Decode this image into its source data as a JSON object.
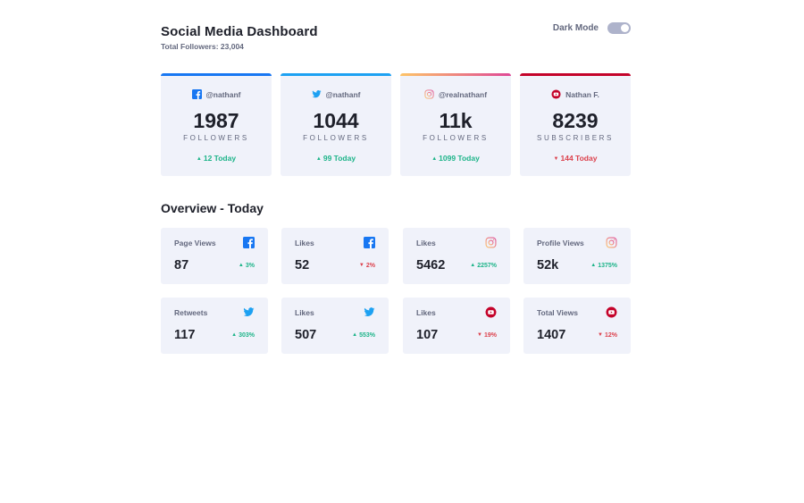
{
  "header": {
    "title": "Social Media Dashboard",
    "subtitle": "Total Followers: 23,004",
    "dark_mode_label": "Dark Mode"
  },
  "colors": {
    "facebook": "#1877f2",
    "twitter": "#1da1f2",
    "instagram_start": "#fdc468",
    "instagram_end": "#df4996",
    "youtube": "#c4032a",
    "up": "#1db489",
    "down": "#dc414c"
  },
  "cards": [
    {
      "platform": "facebook",
      "icon": "facebook-icon",
      "handle": "@nathanf",
      "count": "1987",
      "unit": "FOLLOWERS",
      "today": "12 Today",
      "trend": "up"
    },
    {
      "platform": "twitter",
      "icon": "twitter-icon",
      "handle": "@nathanf",
      "count": "1044",
      "unit": "FOLLOWERS",
      "today": "99 Today",
      "trend": "up"
    },
    {
      "platform": "instagram",
      "icon": "instagram-icon",
      "handle": "@realnathanf",
      "count": "11k",
      "unit": "FOLLOWERS",
      "today": "1099 Today",
      "trend": "up"
    },
    {
      "platform": "youtube",
      "icon": "youtube-icon",
      "handle": "Nathan F.",
      "count": "8239",
      "unit": "SUBSCRIBERS",
      "today": "144 Today",
      "trend": "down"
    }
  ],
  "overview": {
    "title": "Overview - Today",
    "items": [
      {
        "label": "Page Views",
        "icon": "facebook-icon",
        "value": "87",
        "percent": "3%",
        "trend": "up"
      },
      {
        "label": "Likes",
        "icon": "facebook-icon",
        "value": "52",
        "percent": "2%",
        "trend": "down"
      },
      {
        "label": "Likes",
        "icon": "instagram-icon",
        "value": "5462",
        "percent": "2257%",
        "trend": "up"
      },
      {
        "label": "Profile Views",
        "icon": "instagram-icon",
        "value": "52k",
        "percent": "1375%",
        "trend": "up"
      },
      {
        "label": "Retweets",
        "icon": "twitter-icon",
        "value": "117",
        "percent": "303%",
        "trend": "up"
      },
      {
        "label": "Likes",
        "icon": "twitter-icon",
        "value": "507",
        "percent": "553%",
        "trend": "up"
      },
      {
        "label": "Likes",
        "icon": "youtube-icon",
        "value": "107",
        "percent": "19%",
        "trend": "down"
      },
      {
        "label": "Total Views",
        "icon": "youtube-icon",
        "value": "1407",
        "percent": "12%",
        "trend": "down"
      }
    ]
  }
}
